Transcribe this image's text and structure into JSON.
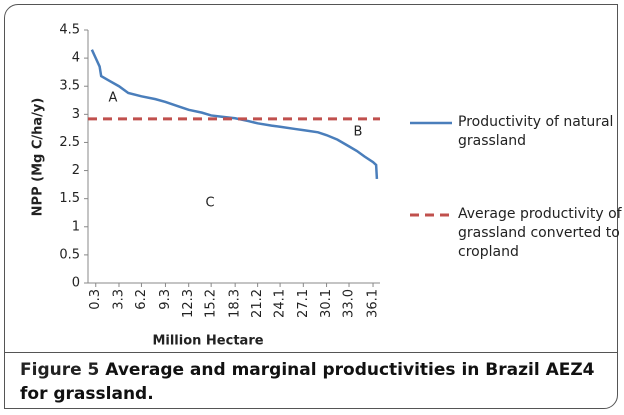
{
  "chart_data": {
    "type": "line",
    "xlabel": "Million Hectare",
    "ylabel": "NPP (Mg C/ha/y)",
    "xlim": [
      -0.7,
      37.0
    ],
    "ylim": [
      0,
      4.5
    ],
    "xticks": [
      0.3,
      3.3,
      6.2,
      9.3,
      12.3,
      15.2,
      18.3,
      21.2,
      24.1,
      27.1,
      30.1,
      {
        "value": 33,
        "label": "33.0"
      },
      36.1
    ],
    "yticks": [
      0,
      0.5,
      1,
      1.5,
      2,
      2.5,
      3,
      3.5,
      4,
      4.5
    ],
    "annotations": [
      "A",
      "B",
      "C"
    ],
    "series": [
      {
        "name": "Productivity of natural grassland",
        "color": "#4a7ebb",
        "style": "solid",
        "x": [
          -0.2,
          0.3,
          0.8,
          1.0,
          2.0,
          3.3,
          4.5,
          6.2,
          8.0,
          9.3,
          11.0,
          12.3,
          14.0,
          15.2,
          17.0,
          18.3,
          20.0,
          21.2,
          23.0,
          24.1,
          26.0,
          27.1,
          29.0,
          30.1,
          31.5,
          32.5,
          33.0,
          34.0,
          35.0,
          36.1,
          36.5,
          36.6
        ],
        "values": [
          4.15,
          4.0,
          3.85,
          3.68,
          3.6,
          3.5,
          3.38,
          3.32,
          3.27,
          3.22,
          3.14,
          3.08,
          3.03,
          2.98,
          2.95,
          2.93,
          2.88,
          2.84,
          2.8,
          2.78,
          2.74,
          2.72,
          2.68,
          2.63,
          2.55,
          2.47,
          2.43,
          2.35,
          2.25,
          2.15,
          2.1,
          1.85
        ]
      },
      {
        "name": "Average productivity of grassland converted to cropland",
        "color": "#c0504d",
        "style": "dashed",
        "x": [
          -0.7,
          37.0
        ],
        "values": [
          2.92,
          2.92
        ]
      }
    ]
  },
  "figure_label": "Figure 5",
  "caption": "Average and marginal productivities in Brazil AEZ4 for grassland."
}
